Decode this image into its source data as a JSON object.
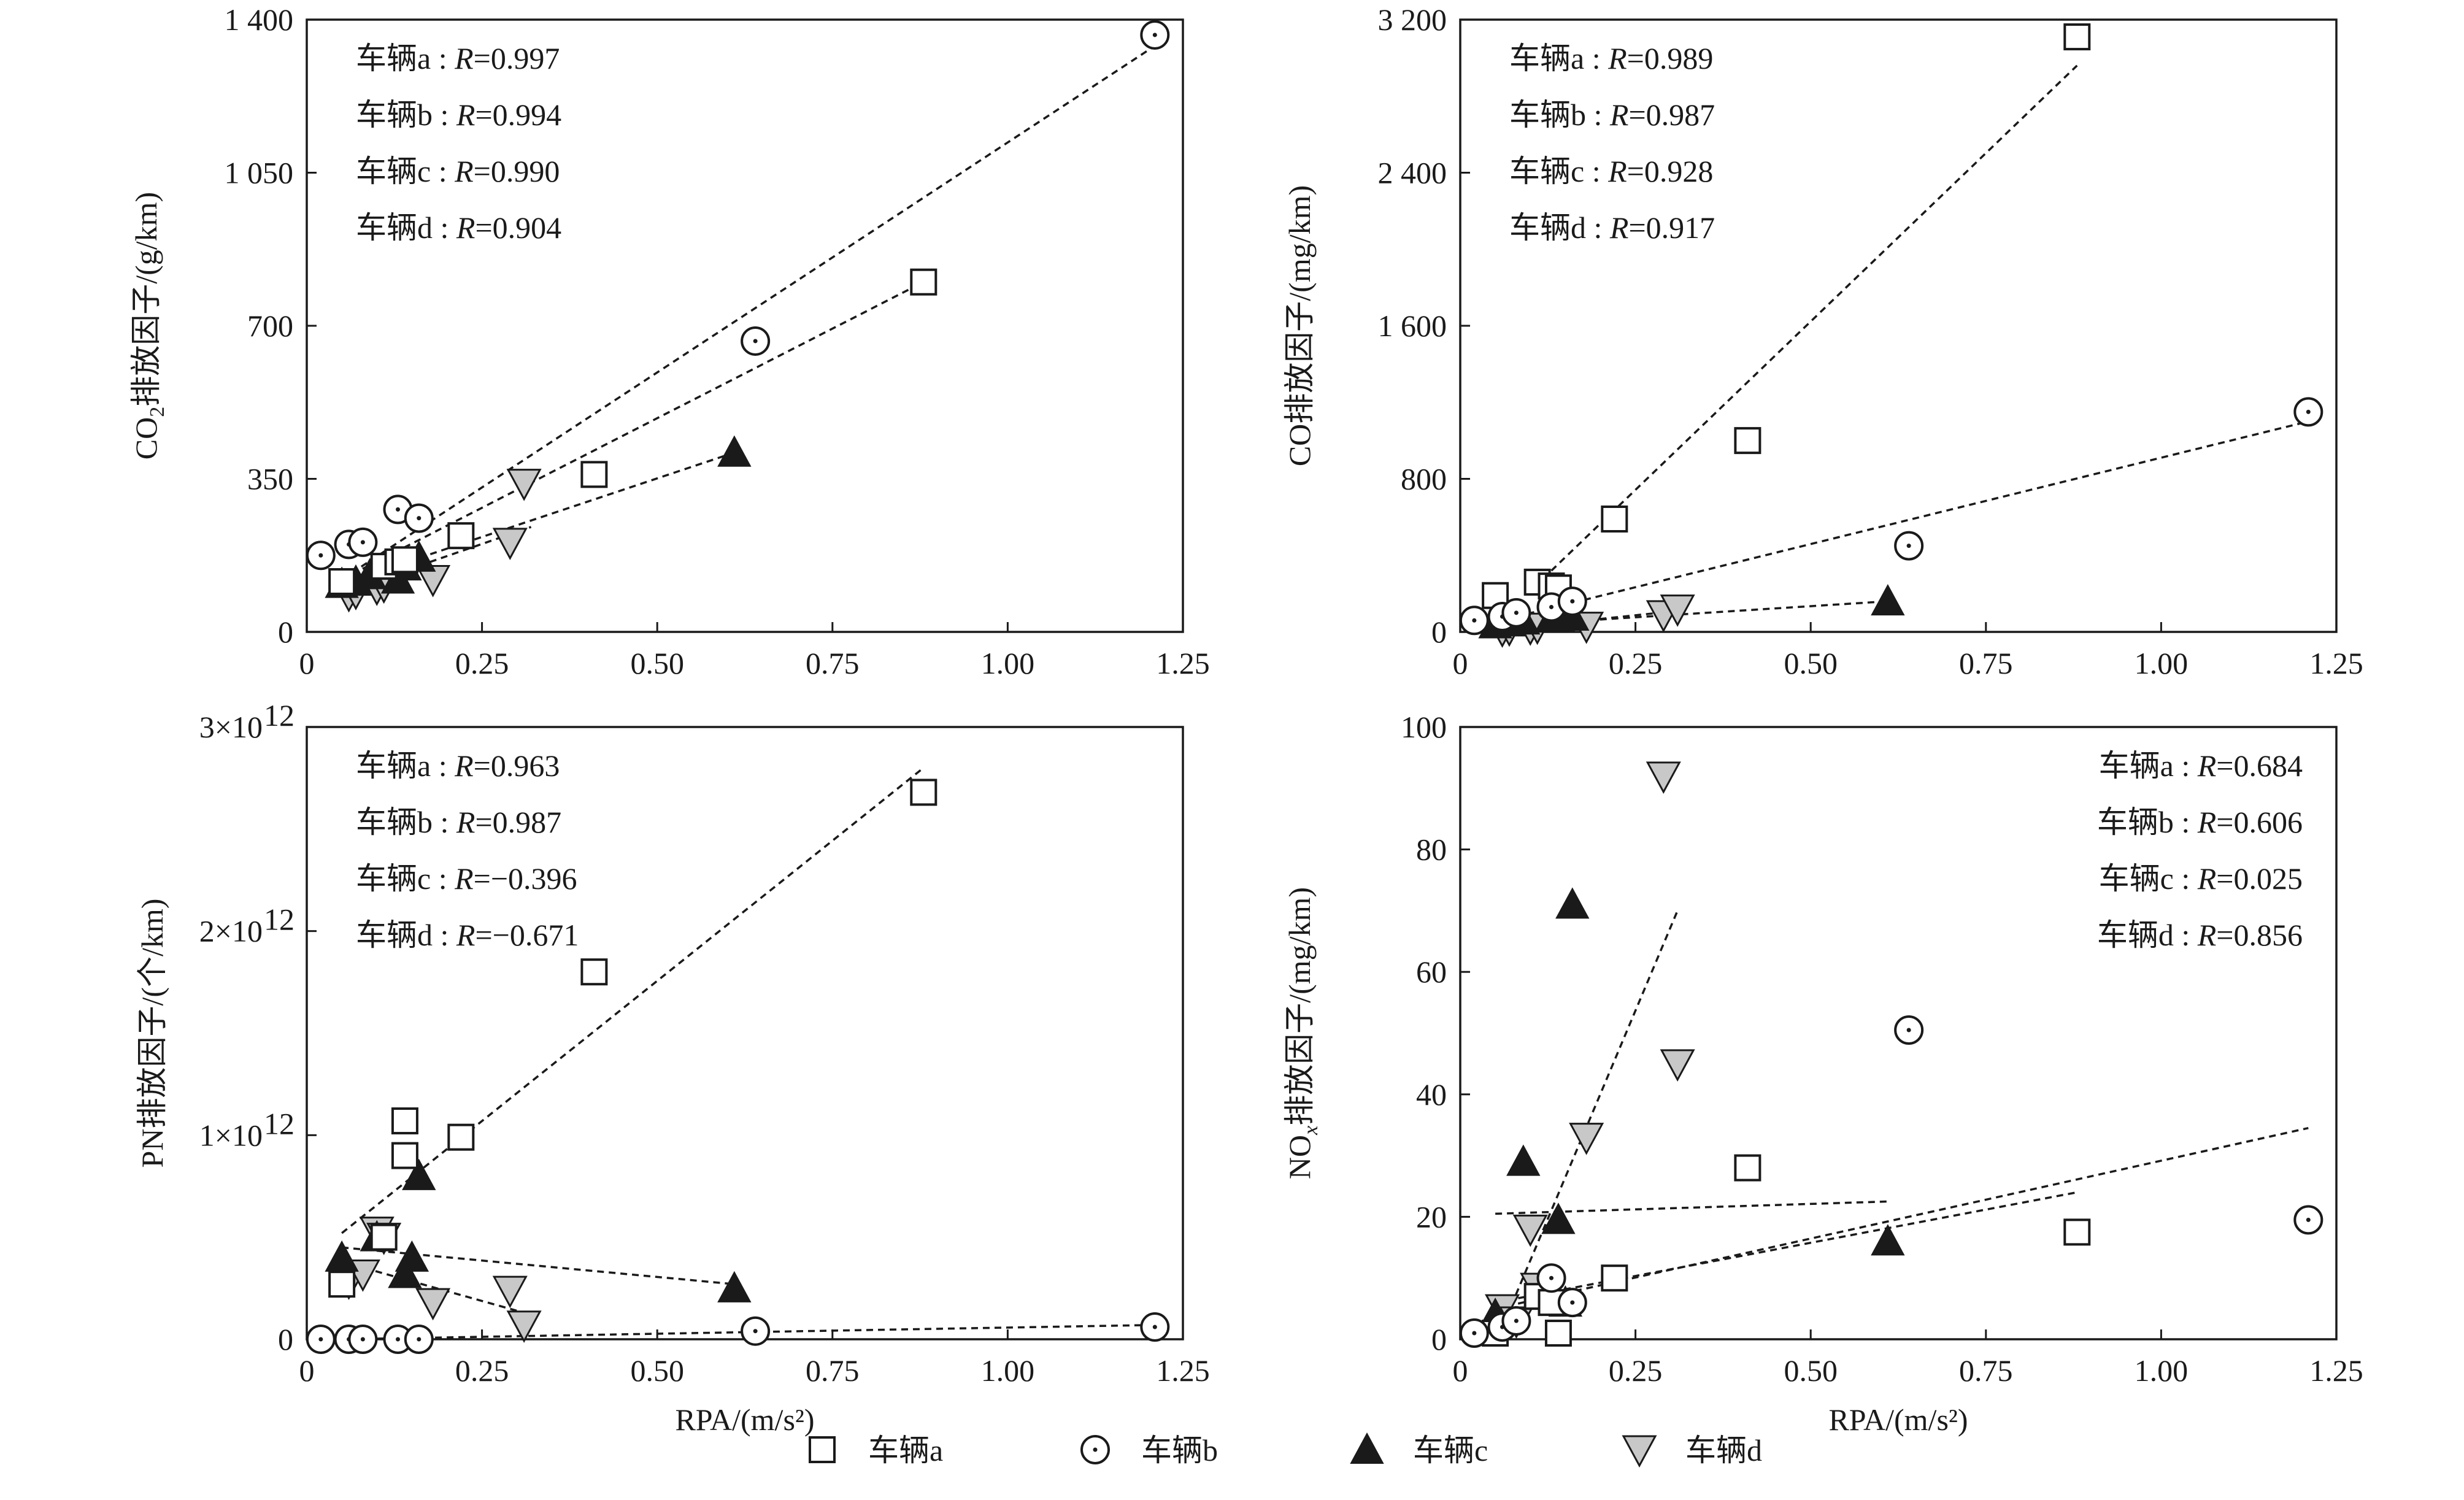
{
  "figure": {
    "legend": [
      {
        "series": "a",
        "label": "车辆a",
        "marker": "square"
      },
      {
        "series": "b",
        "label": "车辆b",
        "marker": "circle"
      },
      {
        "series": "c",
        "label": "车辆c",
        "marker": "triangle-up"
      },
      {
        "series": "d",
        "label": "车辆d",
        "marker": "triangle-down"
      }
    ],
    "colors": {
      "axis": "#1a1a1a",
      "marker_fill_c": "#1a1a1a",
      "marker_fill_d": "#c8c8c8",
      "open_fill": "#ffffff"
    }
  },
  "chart_data": [
    {
      "type": "scatter",
      "panel": "co2",
      "ylabel_parts": [
        "CO",
        "2",
        "排放因子/(g/km)"
      ],
      "xlabel": "",
      "xlim": [
        0,
        1.25
      ],
      "ylim": [
        0,
        1400
      ],
      "xticks": [
        0,
        0.25,
        0.5,
        0.75,
        1.0,
        1.25
      ],
      "xtick_labels": [
        "0",
        "0.25",
        "0.50",
        "0.75",
        "1.00",
        "1.25"
      ],
      "show_xtick_labels": true,
      "yticks": [
        0,
        350,
        700,
        1050,
        1400
      ],
      "ytick_labels": [
        "0",
        "350",
        "700",
        "1 050",
        "1 400"
      ],
      "annotation_position": "top-left",
      "annotations": [
        {
          "vehicle": "车辆a",
          "rvar": "R",
          "rval": "=0.997"
        },
        {
          "vehicle": "车辆b",
          "rvar": "R",
          "rval": "=0.994"
        },
        {
          "vehicle": "车辆c",
          "rvar": "R",
          "rval": "=0.990"
        },
        {
          "vehicle": "车辆d",
          "rvar": "R",
          "rval": "=0.904"
        }
      ],
      "series": [
        {
          "name": "车辆a",
          "marker": "square",
          "points": [
            [
              0.05,
              115
            ],
            [
              0.11,
              150
            ],
            [
              0.13,
              160
            ],
            [
              0.14,
              165
            ],
            [
              0.22,
              220
            ],
            [
              0.41,
              360
            ],
            [
              0.88,
              800
            ]
          ],
          "fit": [
            [
              0.05,
              120
            ],
            [
              0.88,
              800
            ]
          ]
        },
        {
          "name": "车辆b",
          "marker": "circle",
          "points": [
            [
              0.02,
              175
            ],
            [
              0.06,
              200
            ],
            [
              0.08,
              205
            ],
            [
              0.13,
              280
            ],
            [
              0.16,
              260
            ],
            [
              0.64,
              665
            ],
            [
              1.21,
              1365
            ]
          ],
          "fit": [
            [
              0.05,
              120
            ],
            [
              1.21,
              1340
            ]
          ]
        },
        {
          "name": "车辆c",
          "marker": "triangle-up",
          "points": [
            [
              0.05,
              110
            ],
            [
              0.07,
              115
            ],
            [
              0.09,
              130
            ],
            [
              0.13,
              120
            ],
            [
              0.14,
              150
            ],
            [
              0.16,
              170
            ],
            [
              0.61,
              410
            ]
          ],
          "fit": [
            [
              0.05,
              110
            ],
            [
              0.61,
              410
            ]
          ]
        },
        {
          "name": "车辆d",
          "marker": "triangle-down",
          "points": [
            [
              0.06,
              85
            ],
            [
              0.07,
              90
            ],
            [
              0.1,
              100
            ],
            [
              0.11,
              105
            ],
            [
              0.18,
              120
            ],
            [
              0.29,
              205
            ],
            [
              0.31,
              340
            ]
          ],
          "fit": [
            [
              0.05,
              90
            ],
            [
              0.32,
              240
            ]
          ]
        }
      ]
    },
    {
      "type": "scatter",
      "panel": "co",
      "ylabel_parts": [
        "CO排放因子/(mg/km)"
      ],
      "xlabel": "",
      "xlim": [
        0,
        1.25
      ],
      "ylim": [
        0,
        3200
      ],
      "xticks": [
        0,
        0.25,
        0.5,
        0.75,
        1.0,
        1.25
      ],
      "xtick_labels": [
        "0",
        "0.25",
        "0.50",
        "0.75",
        "1.00",
        "1.25"
      ],
      "show_xtick_labels": true,
      "yticks": [
        0,
        800,
        1600,
        2400,
        3200
      ],
      "ytick_labels": [
        "0",
        "800",
        "1 600",
        "2 400",
        "3 200"
      ],
      "annotation_position": "top-left",
      "annotations": [
        {
          "vehicle": "车辆a",
          "rvar": "R",
          "rval": "=0.989"
        },
        {
          "vehicle": "车辆b",
          "rvar": "R",
          "rval": "=0.987"
        },
        {
          "vehicle": "车辆c",
          "rvar": "R",
          "rval": "=0.928"
        },
        {
          "vehicle": "车辆d",
          "rvar": "R",
          "rval": "=0.917"
        }
      ],
      "series": [
        {
          "name": "车辆a",
          "marker": "square",
          "points": [
            [
              0.05,
              190
            ],
            [
              0.11,
              260
            ],
            [
              0.13,
              240
            ],
            [
              0.14,
              230
            ],
            [
              0.22,
              590
            ],
            [
              0.41,
              1000
            ],
            [
              0.88,
              3110
            ]
          ],
          "fit": [
            [
              0.13,
              320
            ],
            [
              0.88,
              2960
            ]
          ]
        },
        {
          "name": "车辆b",
          "marker": "circle",
          "points": [
            [
              0.02,
              60
            ],
            [
              0.06,
              80
            ],
            [
              0.08,
              100
            ],
            [
              0.13,
              130
            ],
            [
              0.16,
              160
            ],
            [
              0.64,
              450
            ],
            [
              1.21,
              1150
            ]
          ],
          "fit": [
            [
              0.08,
              80
            ],
            [
              1.21,
              1100
            ]
          ]
        },
        {
          "name": "车辆c",
          "marker": "triangle-up",
          "points": [
            [
              0.05,
              40
            ],
            [
              0.07,
              50
            ],
            [
              0.09,
              60
            ],
            [
              0.13,
              70
            ],
            [
              0.14,
              75
            ],
            [
              0.16,
              80
            ],
            [
              0.61,
              160
            ]
          ],
          "fit": [
            [
              0.05,
              30
            ],
            [
              0.61,
              160
            ]
          ]
        },
        {
          "name": "车辆d",
          "marker": "triangle-down",
          "points": [
            [
              0.06,
              10
            ],
            [
              0.07,
              15
            ],
            [
              0.1,
              20
            ],
            [
              0.11,
              25
            ],
            [
              0.18,
              30
            ],
            [
              0.29,
              90
            ],
            [
              0.31,
              120
            ]
          ],
          "fit": [
            [
              0.05,
              10
            ],
            [
              0.31,
              110
            ]
          ]
        }
      ]
    },
    {
      "type": "scatter",
      "panel": "pn",
      "ylabel_parts": [
        "PN排放因子/(个/km)"
      ],
      "xlabel": "RPA/(m/s²)",
      "xlim": [
        0,
        1.25
      ],
      "ylim": [
        0,
        3
      ],
      "xticks": [
        0,
        0.25,
        0.5,
        0.75,
        1.0,
        1.25
      ],
      "xtick_labels": [
        "0",
        "0.25",
        "0.50",
        "0.75",
        "1.00",
        "1.25"
      ],
      "show_xtick_labels": true,
      "yticks": [
        0,
        1,
        2,
        3
      ],
      "ytick_labels": [
        "0",
        "1×10",
        "2×10",
        "3×10"
      ],
      "ytick_exponent": "12",
      "y_scale_note": "values in units of 10^12 个/km",
      "annotation_position": "top-left",
      "annotations": [
        {
          "vehicle": "车辆a",
          "rvar": "R",
          "rval": "=0.963"
        },
        {
          "vehicle": "车辆b",
          "rvar": "R",
          "rval": "=0.987"
        },
        {
          "vehicle": "车辆c",
          "rvar": "R",
          "rval": "=−0.396"
        },
        {
          "vehicle": "车辆d",
          "rvar": "R",
          "rval": "=−0.671"
        }
      ],
      "series": [
        {
          "name": "车辆a",
          "marker": "square",
          "points": [
            [
              0.05,
              0.27
            ],
            [
              0.11,
              0.5
            ],
            [
              0.14,
              0.9
            ],
            [
              0.14,
              1.07
            ],
            [
              0.22,
              0.99
            ],
            [
              0.41,
              1.8
            ],
            [
              0.88,
              2.68
            ]
          ],
          "fit": [
            [
              0.05,
              0.52
            ],
            [
              0.88,
              2.8
            ]
          ]
        },
        {
          "name": "车辆b",
          "marker": "circle",
          "points": [
            [
              0.02,
              0.0
            ],
            [
              0.06,
              0.0
            ],
            [
              0.08,
              0.0
            ],
            [
              0.13,
              0.0
            ],
            [
              0.16,
              0.0
            ],
            [
              0.64,
              0.04
            ],
            [
              1.21,
              0.06
            ]
          ],
          "fit": [
            [
              0.05,
              0.0
            ],
            [
              1.21,
              0.07
            ]
          ]
        },
        {
          "name": "车辆c",
          "marker": "triangle-up",
          "points": [
            [
              0.05,
              0.4
            ],
            [
              0.1,
              0.5
            ],
            [
              0.14,
              0.32
            ],
            [
              0.15,
              0.4
            ],
            [
              0.16,
              0.8
            ],
            [
              0.61,
              0.25
            ]
          ],
          "fit": [
            [
              0.05,
              0.45
            ],
            [
              0.61,
              0.27
            ]
          ]
        },
        {
          "name": "车辆d",
          "marker": "triangle-down",
          "points": [
            [
              0.06,
              0.28
            ],
            [
              0.08,
              0.32
            ],
            [
              0.1,
              0.53
            ],
            [
              0.11,
              0.5
            ],
            [
              0.18,
              0.18
            ],
            [
              0.29,
              0.24
            ],
            [
              0.31,
              0.07
            ]
          ],
          "fit": [
            [
              0.05,
              0.38
            ],
            [
              0.31,
              0.13
            ]
          ]
        }
      ]
    },
    {
      "type": "scatter",
      "panel": "nox",
      "ylabel_parts": [
        "NO",
        "x",
        "排放因子/(mg/km)"
      ],
      "xlabel": "RPA/(m/s²)",
      "xlim": [
        0,
        1.25
      ],
      "ylim": [
        0,
        100
      ],
      "xticks": [
        0,
        0.25,
        0.5,
        0.75,
        1.0,
        1.25
      ],
      "xtick_labels": [
        "0",
        "0.25",
        "0.50",
        "0.75",
        "1.00",
        "1.25"
      ],
      "show_xtick_labels": true,
      "yticks": [
        0,
        20,
        40,
        60,
        80,
        100
      ],
      "ytick_labels": [
        "0",
        "20",
        "40",
        "60",
        "80",
        "100"
      ],
      "annotation_position": "top-right",
      "annotations": [
        {
          "vehicle": "车辆a",
          "rvar": "R",
          "rval": "=0.684"
        },
        {
          "vehicle": "车辆b",
          "rvar": "R",
          "rval": "=0.606"
        },
        {
          "vehicle": "车辆c",
          "rvar": "R",
          "rval": "=0.025"
        },
        {
          "vehicle": "车辆d",
          "rvar": "R",
          "rval": "=0.856"
        }
      ],
      "series": [
        {
          "name": "车辆a",
          "marker": "square",
          "points": [
            [
              0.05,
              1
            ],
            [
              0.11,
              7
            ],
            [
              0.13,
              6
            ],
            [
              0.14,
              1
            ],
            [
              0.22,
              10
            ],
            [
              0.41,
              28
            ],
            [
              0.88,
              17.5
            ]
          ],
          "fit": [
            [
              0.05,
              6
            ],
            [
              0.88,
              24
            ]
          ]
        },
        {
          "name": "车辆b",
          "marker": "circle",
          "points": [
            [
              0.02,
              1
            ],
            [
              0.06,
              2
            ],
            [
              0.08,
              3
            ],
            [
              0.13,
              10
            ],
            [
              0.16,
              6
            ],
            [
              0.64,
              50.5
            ],
            [
              1.21,
              19.5
            ]
          ],
          "fit": [
            [
              0.05,
              5
            ],
            [
              1.21,
              34.5
            ]
          ]
        },
        {
          "name": "车辆c",
          "marker": "triangle-up",
          "points": [
            [
              0.05,
              4
            ],
            [
              0.09,
              29
            ],
            [
              0.14,
              19.5
            ],
            [
              0.15,
              6
            ],
            [
              0.16,
              71
            ],
            [
              0.61,
              16
            ]
          ],
          "fit": [
            [
              0.05,
              20.5
            ],
            [
              0.61,
              22.5
            ]
          ]
        },
        {
          "name": "车辆d",
          "marker": "triangle-down",
          "points": [
            [
              0.06,
              5
            ],
            [
              0.08,
              3
            ],
            [
              0.1,
              18
            ],
            [
              0.11,
              8.5
            ],
            [
              0.18,
              33
            ],
            [
              0.29,
              92
            ],
            [
              0.31,
              45
            ]
          ],
          "fit": [
            [
              0.06,
              2
            ],
            [
              0.31,
              70
            ]
          ]
        }
      ]
    }
  ]
}
